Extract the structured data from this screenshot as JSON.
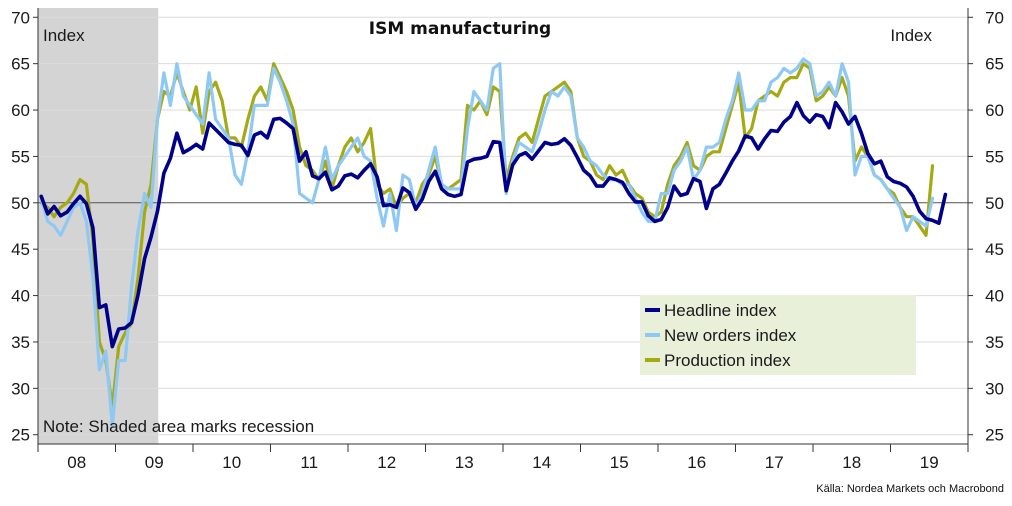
{
  "chart_data": {
    "type": "line",
    "title": "ISM manufacturing",
    "ylabel_left": "Index",
    "ylabel_right": "Index",
    "ylim": [
      24,
      71
    ],
    "yticks": [
      25,
      30,
      35,
      40,
      45,
      50,
      55,
      60,
      65,
      70
    ],
    "reference_line": 50,
    "x_start": "2008-01",
    "year_labels": [
      "08",
      "09",
      "10",
      "11",
      "12",
      "13",
      "14",
      "15",
      "16",
      "17",
      "18",
      "19"
    ],
    "recession": {
      "from": "2008-01",
      "to": "2009-06"
    },
    "note": "Note: Shaded area marks recession",
    "source": "Källa: Nordea Markets och Macrobond",
    "legend": [
      "Headline index",
      "New orders index",
      "Production index"
    ],
    "series": [
      {
        "name": "Headline index",
        "color": "#00008b",
        "values": [
          50.7,
          48.8,
          49.6,
          48.6,
          49.0,
          49.9,
          50.7,
          49.9,
          47.3,
          38.7,
          39.0,
          34.5,
          36.4,
          36.5,
          37.1,
          40.1,
          44.0,
          46.3,
          49.1,
          53.2,
          54.8,
          57.5,
          55.4,
          55.8,
          56.3,
          55.8,
          58.6,
          57.9,
          57.2,
          56.5,
          56.3,
          56.2,
          55.1,
          57.3,
          57.6,
          57.0,
          59.0,
          59.1,
          58.6,
          58.0,
          54.5,
          55.5,
          52.9,
          52.6,
          53.3,
          51.4,
          51.8,
          52.9,
          53.1,
          52.7,
          53.5,
          54.2,
          52.8,
          49.7,
          49.8,
          49.5,
          51.6,
          51.1,
          49.3,
          50.4,
          52.3,
          53.4,
          51.5,
          50.9,
          50.7,
          50.9,
          54.4,
          54.7,
          54.8,
          55.0,
          56.6,
          56.5,
          51.3,
          54.1,
          55.1,
          55.4,
          54.7,
          55.6,
          56.5,
          56.3,
          56.4,
          56.9,
          56.2,
          54.9,
          53.5,
          52.9,
          51.8,
          51.8,
          52.7,
          52.5,
          52.2,
          51.0,
          50.1,
          50.1,
          48.6,
          48.0,
          48.2,
          49.5,
          51.8,
          50.8,
          51.0,
          52.6,
          52.3,
          49.4,
          51.5,
          52.0,
          53.2,
          54.5,
          55.6,
          57.2,
          57.0,
          55.8,
          56.9,
          57.8,
          57.7,
          58.7,
          59.3,
          60.8,
          59.4,
          58.7,
          59.5,
          59.3,
          58.1,
          60.8,
          59.8,
          58.5,
          59.3,
          57.5,
          55.3,
          54.2,
          54.5,
          52.8,
          52.3,
          52.1,
          51.7,
          50.7,
          49.1,
          48.3,
          48.1,
          47.8,
          50.9
        ]
      },
      {
        "name": "New orders index",
        "color": "#8ec9f5",
        "values": [
          50.5,
          48.0,
          47.5,
          46.5,
          48.0,
          49.5,
          50.0,
          48.0,
          42.0,
          32.0,
          34.0,
          26.0,
          33.0,
          33.0,
          41.0,
          47.0,
          51.0,
          49.5,
          59.0,
          64.0,
          60.5,
          65.0,
          61.5,
          60.5,
          59.5,
          58.5,
          64.0,
          59.0,
          58.0,
          57.0,
          53.0,
          52.0,
          55.5,
          60.5,
          60.5,
          60.5,
          64.5,
          63.0,
          61.0,
          58.5,
          51.0,
          50.5,
          50.0,
          52.5,
          56.0,
          52.5,
          54.0,
          55.0,
          56.0,
          57.0,
          55.0,
          54.5,
          50.5,
          47.5,
          51.0,
          47.0,
          53.0,
          52.5,
          49.5,
          51.0,
          53.5,
          56.0,
          52.0,
          51.5,
          51.5,
          51.5,
          58.0,
          62.0,
          61.0,
          60.0,
          64.5,
          65.0,
          51.0,
          54.5,
          56.5,
          56.0,
          55.5,
          57.5,
          60.0,
          62.0,
          61.5,
          62.5,
          61.5,
          57.0,
          56.0,
          54.5,
          54.0,
          53.0,
          52.5,
          52.5,
          52.0,
          52.0,
          50.5,
          49.0,
          48.0,
          48.0,
          51.0,
          51.0,
          53.5,
          54.5,
          56.0,
          52.5,
          53.5,
          56.0,
          56.0,
          56.5,
          59.0,
          61.0,
          64.0,
          60.0,
          60.0,
          61.0,
          61.0,
          63.0,
          63.5,
          64.5,
          64.0,
          64.5,
          65.5,
          65.0,
          61.5,
          62.0,
          63.0,
          61.5,
          65.0,
          63.0,
          53.0,
          55.0,
          55.0,
          53.0,
          52.5,
          51.5,
          50.5,
          49.5,
          47.0,
          48.5,
          48.0,
          47.5,
          50.5
        ]
      },
      {
        "name": "Production index",
        "color": "#a5aa14",
        "values": [
          50.0,
          49.5,
          48.5,
          49.5,
          50.0,
          51.0,
          52.5,
          52.0,
          46.0,
          35.0,
          33.0,
          28.0,
          34.5,
          36.0,
          37.0,
          42.0,
          49.0,
          52.0,
          59.0,
          62.0,
          61.5,
          64.0,
          62.0,
          60.0,
          62.5,
          57.5,
          62.0,
          63.0,
          61.0,
          57.0,
          57.0,
          56.0,
          59.0,
          61.5,
          62.5,
          61.0,
          65.0,
          63.5,
          62.0,
          60.0,
          56.0,
          54.0,
          53.5,
          52.5,
          54.5,
          51.5,
          54.0,
          56.0,
          57.0,
          55.5,
          56.5,
          58.0,
          52.0,
          51.0,
          51.5,
          49.5,
          50.5,
          51.0,
          50.0,
          52.0,
          53.0,
          55.0,
          52.0,
          51.5,
          52.0,
          52.5,
          60.5,
          60.0,
          61.0,
          59.5,
          62.5,
          62.0,
          52.5,
          55.0,
          57.0,
          57.5,
          56.5,
          59.0,
          61.5,
          62.0,
          62.5,
          63.0,
          62.0,
          57.0,
          55.0,
          54.5,
          53.0,
          52.5,
          54.0,
          53.0,
          53.5,
          52.0,
          51.0,
          50.5,
          49.0,
          48.5,
          49.0,
          52.0,
          54.0,
          55.0,
          56.5,
          54.0,
          53.5,
          55.0,
          55.5,
          55.5,
          58.0,
          60.5,
          63.0,
          57.0,
          58.0,
          61.0,
          61.5,
          62.0,
          61.5,
          63.0,
          63.5,
          63.5,
          65.0,
          64.5,
          61.0,
          61.5,
          62.5,
          61.5,
          63.5,
          61.5,
          54.5,
          56.0,
          55.0,
          53.0,
          52.5,
          51.5,
          51.0,
          49.5,
          48.5,
          48.5,
          47.5,
          46.5,
          54.0
        ]
      }
    ]
  }
}
